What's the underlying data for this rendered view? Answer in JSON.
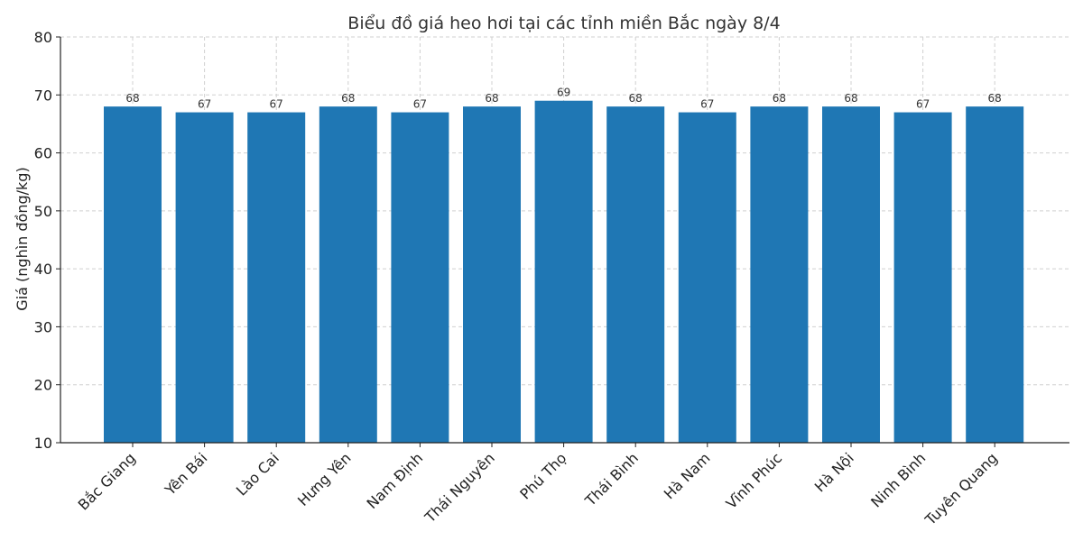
{
  "chart_data": {
    "type": "bar",
    "title": "Biểu đồ giá heo hơi tại các tỉnh miền Bắc ngày 8/4",
    "xlabel": "",
    "ylabel": "Giá (nghìn đồng/kg)",
    "categories": [
      "Bắc Giang",
      "Yên Bái",
      "Lào Cai",
      "Hưng Yên",
      "Nam Định",
      "Thái Nguyên",
      "Phú Thọ",
      "Thái Bình",
      "Hà Nam",
      "Vĩnh Phúc",
      "Hà Nội",
      "Ninh Bình",
      "Tuyên Quang"
    ],
    "values": [
      68,
      67,
      67,
      68,
      67,
      68,
      69,
      68,
      67,
      68,
      68,
      67,
      68
    ],
    "ylim": [
      10,
      80
    ],
    "yticks": [
      10,
      20,
      30,
      40,
      50,
      60,
      70,
      80
    ],
    "grid": true,
    "bar_color": "#1f77b4",
    "show_data_labels": true
  }
}
